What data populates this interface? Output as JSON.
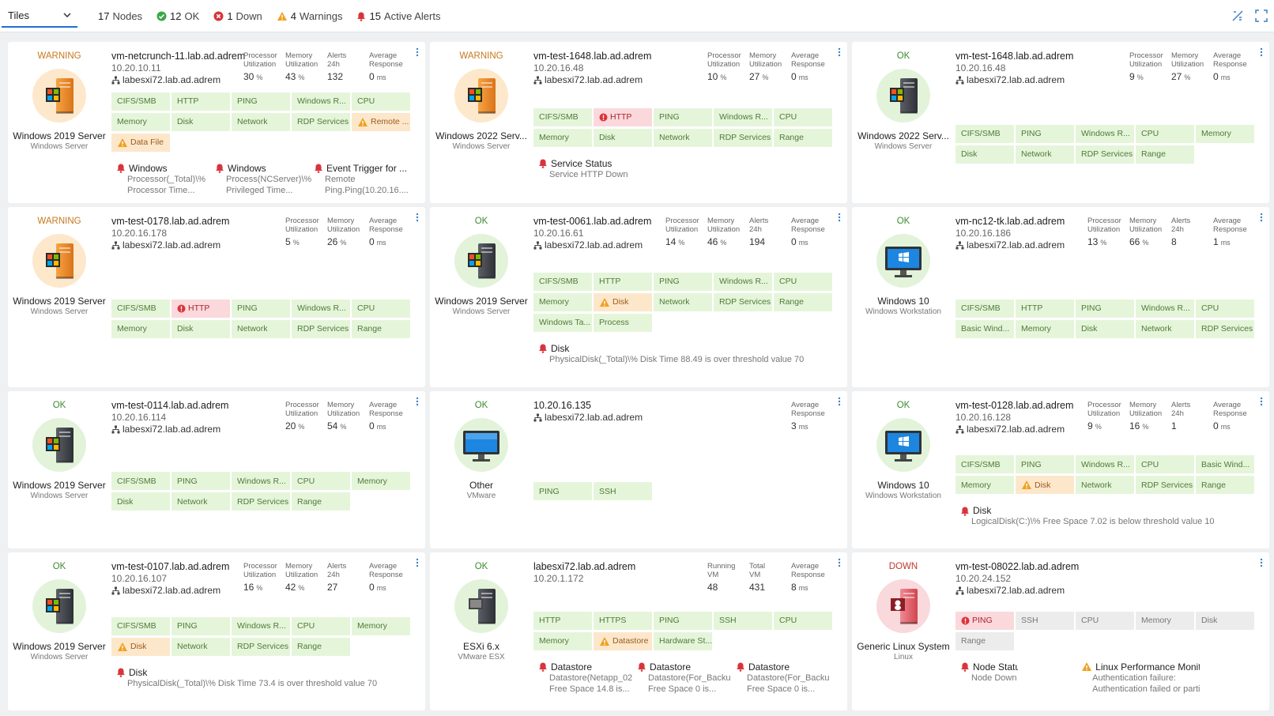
{
  "toolbar": {
    "view": "Tiles",
    "summary": [
      {
        "count": 17,
        "label": "Nodes",
        "state": "none"
      },
      {
        "count": 12,
        "label": "OK",
        "state": "ok"
      },
      {
        "count": 1,
        "label": "Down",
        "state": "down"
      },
      {
        "count": 4,
        "label": "Warnings",
        "state": "warning"
      },
      {
        "count": 15,
        "label": "Active Alerts",
        "state": "alert"
      }
    ]
  },
  "tiles": [
    {
      "status": "WARNING",
      "name": "vm-netcrunch-11.lab.ad.adrem",
      "ip": "10.20.10.11",
      "parent": "labesxi72.lab.ad.adrem",
      "os": "Windows 2019 Server",
      "os_type": "Windows Server",
      "metrics": [
        {
          "label": "Processor Utilization",
          "value": 30,
          "unit": "%"
        },
        {
          "label": "Memory Utilization",
          "value": 43,
          "unit": "%"
        },
        {
          "label": "Alerts 24h",
          "value": 132
        },
        {
          "label": "Average Response",
          "value": 0,
          "unit": "ms"
        }
      ],
      "services": [
        {
          "name": "CIFS/SMB",
          "state": "ok"
        },
        {
          "name": "HTTP",
          "state": "ok"
        },
        {
          "name": "PING",
          "state": "ok"
        },
        {
          "name": "Windows R...",
          "state": "ok"
        },
        {
          "name": "CPU",
          "state": "ok"
        },
        {
          "name": "Memory",
          "state": "ok"
        },
        {
          "name": "Disk",
          "state": "ok"
        },
        {
          "name": "Network",
          "state": "ok"
        },
        {
          "name": "RDP Services",
          "state": "ok"
        },
        {
          "name": "Remote ...",
          "state": "warning"
        },
        {
          "name": "Data File",
          "state": "warning"
        }
      ],
      "alerts": [
        {
          "title": "Windows",
          "level": "error",
          "lines": [
            "Processor(_Total)\\%",
            "Processor Time..."
          ]
        },
        {
          "title": "Windows",
          "level": "error",
          "lines": [
            "Process(NCServer)\\%",
            "Privileged Time..."
          ]
        },
        {
          "title": "Event Trigger for ...",
          "level": "error",
          "lines": [
            "Remote",
            "Ping.Ping(10.20.16...."
          ]
        }
      ]
    },
    {
      "status": "WARNING",
      "name": "vm-test-1648.lab.ad.adrem",
      "ip": "10.20.16.48",
      "parent": "labesxi72.lab.ad.adrem",
      "os": "Windows 2022 Serv...",
      "os_type": "Windows Server",
      "metrics": [
        {
          "label": "Processor Utilization",
          "value": 10,
          "unit": "%"
        },
        {
          "label": "Memory Utilization",
          "value": 27,
          "unit": "%"
        },
        {
          "label": "Average Response",
          "value": 0,
          "unit": "ms"
        }
      ],
      "services": [
        {
          "name": "CIFS/SMB",
          "state": "ok"
        },
        {
          "name": "HTTP",
          "state": "error"
        },
        {
          "name": "PING",
          "state": "ok"
        },
        {
          "name": "Windows R...",
          "state": "ok"
        },
        {
          "name": "CPU",
          "state": "ok"
        },
        {
          "name": "Memory",
          "state": "ok"
        },
        {
          "name": "Disk",
          "state": "ok"
        },
        {
          "name": "Network",
          "state": "ok"
        },
        {
          "name": "RDP Services",
          "state": "ok"
        },
        {
          "name": "Range",
          "state": "ok"
        }
      ],
      "alerts": [
        {
          "title": "Service Status",
          "level": "error",
          "lines": [
            "Service HTTP Down"
          ]
        }
      ]
    },
    {
      "status": "OK",
      "name": "vm-test-1648.lab.ad.adrem",
      "ip": "10.20.16.48",
      "parent": "labesxi72.lab.ad.adrem",
      "os": "Windows 2022 Serv...",
      "os_type": "Windows Server",
      "metrics": [
        {
          "label": "Processor Utilization",
          "value": 9,
          "unit": "%"
        },
        {
          "label": "Memory Utilization",
          "value": 27,
          "unit": "%"
        },
        {
          "label": "Average Response",
          "value": 0,
          "unit": "ms"
        }
      ],
      "services": [
        {
          "name": "CIFS/SMB",
          "state": "ok"
        },
        {
          "name": "PING",
          "state": "ok"
        },
        {
          "name": "Windows R...",
          "state": "ok"
        },
        {
          "name": "CPU",
          "state": "ok"
        },
        {
          "name": "Memory",
          "state": "ok"
        },
        {
          "name": "Disk",
          "state": "ok"
        },
        {
          "name": "Network",
          "state": "ok"
        },
        {
          "name": "RDP Services",
          "state": "ok"
        },
        {
          "name": "Range",
          "state": "ok"
        }
      ],
      "alerts": []
    },
    {
      "status": "WARNING",
      "name": "vm-test-0178.lab.ad.adrem",
      "ip": "10.20.16.178",
      "parent": "labesxi72.lab.ad.adrem",
      "os": "Windows 2019 Server",
      "os_type": "Windows Server",
      "metrics": [
        {
          "label": "Processor Utilization",
          "value": 5,
          "unit": "%"
        },
        {
          "label": "Memory Utilization",
          "value": 26,
          "unit": "%"
        },
        {
          "label": "Average Response",
          "value": 0,
          "unit": "ms"
        }
      ],
      "services": [
        {
          "name": "CIFS/SMB",
          "state": "ok"
        },
        {
          "name": "HTTP",
          "state": "error"
        },
        {
          "name": "PING",
          "state": "ok"
        },
        {
          "name": "Windows R...",
          "state": "ok"
        },
        {
          "name": "CPU",
          "state": "ok"
        },
        {
          "name": "Memory",
          "state": "ok"
        },
        {
          "name": "Disk",
          "state": "ok"
        },
        {
          "name": "Network",
          "state": "ok"
        },
        {
          "name": "RDP Services",
          "state": "ok"
        },
        {
          "name": "Range",
          "state": "ok"
        }
      ],
      "alerts": []
    },
    {
      "status": "OK",
      "name": "vm-test-0061.lab.ad.adrem",
      "ip": "10.20.16.61",
      "parent": "labesxi72.lab.ad.adrem",
      "os": "Windows 2019 Server",
      "os_type": "Windows Server",
      "metrics": [
        {
          "label": "Processor Utilization",
          "value": 14,
          "unit": "%"
        },
        {
          "label": "Memory Utilization",
          "value": 46,
          "unit": "%"
        },
        {
          "label": "Alerts 24h",
          "value": 194
        },
        {
          "label": "Average Response",
          "value": 0,
          "unit": "ms"
        }
      ],
      "services": [
        {
          "name": "CIFS/SMB",
          "state": "ok"
        },
        {
          "name": "HTTP",
          "state": "ok"
        },
        {
          "name": "PING",
          "state": "ok"
        },
        {
          "name": "Windows R...",
          "state": "ok"
        },
        {
          "name": "CPU",
          "state": "ok"
        },
        {
          "name": "Memory",
          "state": "ok"
        },
        {
          "name": "Disk",
          "state": "warning"
        },
        {
          "name": "Network",
          "state": "ok"
        },
        {
          "name": "RDP Services",
          "state": "ok"
        },
        {
          "name": "Range",
          "state": "ok"
        },
        {
          "name": "Windows Ta...",
          "state": "ok"
        },
        {
          "name": "Process",
          "state": "ok"
        }
      ],
      "alerts": [
        {
          "title": "Disk",
          "level": "error",
          "lines": [
            "PhysicalDisk(_Total)\\% Disk Time 88.49 is over threshold value 70"
          ]
        }
      ]
    },
    {
      "status": "OK",
      "name": "vm-nc12-tk.lab.ad.adrem",
      "ip": "10.20.16.186",
      "parent": "labesxi72.lab.ad.adrem",
      "os": "Windows 10",
      "os_type": "Windows Workstation",
      "metrics": [
        {
          "label": "Processor Utilization",
          "value": 13,
          "unit": "%"
        },
        {
          "label": "Memory Utilization",
          "value": 66,
          "unit": "%"
        },
        {
          "label": "Alerts 24h",
          "value": 8
        },
        {
          "label": "Average Response",
          "value": 1,
          "unit": "ms"
        }
      ],
      "services": [
        {
          "name": "CIFS/SMB",
          "state": "ok"
        },
        {
          "name": "HTTP",
          "state": "ok"
        },
        {
          "name": "PING",
          "state": "ok"
        },
        {
          "name": "Windows R...",
          "state": "ok"
        },
        {
          "name": "CPU",
          "state": "ok"
        },
        {
          "name": "Basic Wind...",
          "state": "ok"
        },
        {
          "name": "Memory",
          "state": "ok"
        },
        {
          "name": "Disk",
          "state": "ok"
        },
        {
          "name": "Network",
          "state": "ok"
        },
        {
          "name": "RDP Services",
          "state": "ok"
        }
      ],
      "alerts": []
    },
    {
      "status": "OK",
      "name": "vm-test-0114.lab.ad.adrem",
      "ip": "10.20.16.114",
      "parent": "labesxi72.lab.ad.adrem",
      "os": "Windows 2019 Server",
      "os_type": "Windows Server",
      "metrics": [
        {
          "label": "Processor Utilization",
          "value": 20,
          "unit": "%"
        },
        {
          "label": "Memory Utilization",
          "value": 54,
          "unit": "%"
        },
        {
          "label": "Average Response",
          "value": 0,
          "unit": "ms"
        }
      ],
      "services": [
        {
          "name": "CIFS/SMB",
          "state": "ok"
        },
        {
          "name": "PING",
          "state": "ok"
        },
        {
          "name": "Windows R...",
          "state": "ok"
        },
        {
          "name": "CPU",
          "state": "ok"
        },
        {
          "name": "Memory",
          "state": "ok"
        },
        {
          "name": "Disk",
          "state": "ok"
        },
        {
          "name": "Network",
          "state": "ok"
        },
        {
          "name": "RDP Services",
          "state": "ok"
        },
        {
          "name": "Range",
          "state": "ok"
        }
      ],
      "alerts": []
    },
    {
      "status": "OK",
      "name": "10.20.16.135",
      "parent": "labesxi72.lab.ad.adrem",
      "os": "Other",
      "os_type": "VMware",
      "metrics": [
        {
          "label": "Average Response",
          "value": 3,
          "unit": "ms"
        }
      ],
      "services": [
        {
          "name": "PING",
          "state": "ok"
        },
        {
          "name": "SSH",
          "state": "ok"
        }
      ],
      "alerts": []
    },
    {
      "status": "OK",
      "name": "vm-test-0128.lab.ad.adrem",
      "ip": "10.20.16.128",
      "parent": "labesxi72.lab.ad.adrem",
      "os": "Windows 10",
      "os_type": "Windows Workstation",
      "metrics": [
        {
          "label": "Processor Utilization",
          "value": 9,
          "unit": "%"
        },
        {
          "label": "Memory Utilization",
          "value": 16,
          "unit": "%"
        },
        {
          "label": "Alerts 24h",
          "value": 1
        },
        {
          "label": "Average Response",
          "value": 0,
          "unit": "ms"
        }
      ],
      "services": [
        {
          "name": "CIFS/SMB",
          "state": "ok"
        },
        {
          "name": "PING",
          "state": "ok"
        },
        {
          "name": "Windows R...",
          "state": "ok"
        },
        {
          "name": "CPU",
          "state": "ok"
        },
        {
          "name": "Basic Wind...",
          "state": "ok"
        },
        {
          "name": "Memory",
          "state": "ok"
        },
        {
          "name": "Disk",
          "state": "warning"
        },
        {
          "name": "Network",
          "state": "ok"
        },
        {
          "name": "RDP Services",
          "state": "ok"
        },
        {
          "name": "Range",
          "state": "ok"
        }
      ],
      "alerts": [
        {
          "title": "Disk",
          "level": "error",
          "lines": [
            "LogicalDisk(C:)\\% Free Space 7.02 is below threshold value 10"
          ]
        }
      ]
    },
    {
      "status": "OK",
      "name": "vm-test-0107.lab.ad.adrem",
      "ip": "10.20.16.107",
      "parent": "labesxi72.lab.ad.adrem",
      "os": "Windows 2019 Server",
      "os_type": "Windows Server",
      "metrics": [
        {
          "label": "Processor Utilization",
          "value": 16,
          "unit": "%"
        },
        {
          "label": "Memory Utilization",
          "value": 42,
          "unit": "%"
        },
        {
          "label": "Alerts 24h",
          "value": 27
        },
        {
          "label": "Average Response",
          "value": 0,
          "unit": "ms"
        }
      ],
      "services": [
        {
          "name": "CIFS/SMB",
          "state": "ok"
        },
        {
          "name": "PING",
          "state": "ok"
        },
        {
          "name": "Windows R...",
          "state": "ok"
        },
        {
          "name": "CPU",
          "state": "ok"
        },
        {
          "name": "Memory",
          "state": "ok"
        },
        {
          "name": "Disk",
          "state": "warning"
        },
        {
          "name": "Network",
          "state": "ok"
        },
        {
          "name": "RDP Services",
          "state": "ok"
        },
        {
          "name": "Range",
          "state": "ok"
        }
      ],
      "alerts": [
        {
          "title": "Disk",
          "level": "error",
          "lines": [
            "PhysicalDisk(_Total)\\% Disk Time 73.4 is over threshold value 70"
          ]
        }
      ]
    },
    {
      "status": "OK",
      "name": "labesxi72.lab.ad.adrem",
      "ip": "10.20.1.172",
      "os": "ESXi 6.x",
      "os_type": "VMware ESX",
      "metrics": [
        {
          "label": "Running VM",
          "value": 48
        },
        {
          "label": "Total VM",
          "value": 431
        },
        {
          "label": "Average Response",
          "value": 8,
          "unit": "ms"
        }
      ],
      "services": [
        {
          "name": "HTTP",
          "state": "ok"
        },
        {
          "name": "HTTPS",
          "state": "ok"
        },
        {
          "name": "PING",
          "state": "ok"
        },
        {
          "name": "SSH",
          "state": "ok"
        },
        {
          "name": "CPU",
          "state": "ok"
        },
        {
          "name": "Memory",
          "state": "ok"
        },
        {
          "name": "Datastore",
          "state": "warning"
        },
        {
          "name": "Hardware St...",
          "state": "ok"
        }
      ],
      "alerts": [
        {
          "title": "Datastore",
          "level": "error",
          "lines": [
            "Datastore(Netapp_02",
            "Free Space 14.8 is..."
          ]
        },
        {
          "title": "Datastore",
          "level": "error",
          "lines": [
            "Datastore(For_Backu",
            "Free Space 0 is..."
          ]
        },
        {
          "title": "Datastore",
          "level": "error",
          "lines": [
            "Datastore(For_Backu",
            "Free Space 0 is..."
          ]
        }
      ]
    },
    {
      "status": "DOWN",
      "name": "vm-test-08022.lab.ad.adrem",
      "ip": "10.20.24.152",
      "parent": "labesxi72.lab.ad.adrem",
      "os": "Generic Linux System",
      "os_type": "Linux",
      "metrics": [],
      "services": [
        {
          "name": "PING",
          "state": "error"
        },
        {
          "name": "SSH",
          "state": "unknown"
        },
        {
          "name": "CPU",
          "state": "unknown"
        },
        {
          "name": "Memory",
          "state": "unknown"
        },
        {
          "name": "Disk",
          "state": "unknown"
        },
        {
          "name": "Range",
          "state": "unknown"
        }
      ],
      "alerts": [
        {
          "title": "Node Status",
          "level": "error",
          "lines": [
            "Node Down"
          ]
        },
        {
          "title": "Linux Performance Monitor",
          "level": "warning",
          "lines": [
            "Authentication failure:",
            "Authentication failed or partial..."
          ]
        }
      ]
    }
  ]
}
